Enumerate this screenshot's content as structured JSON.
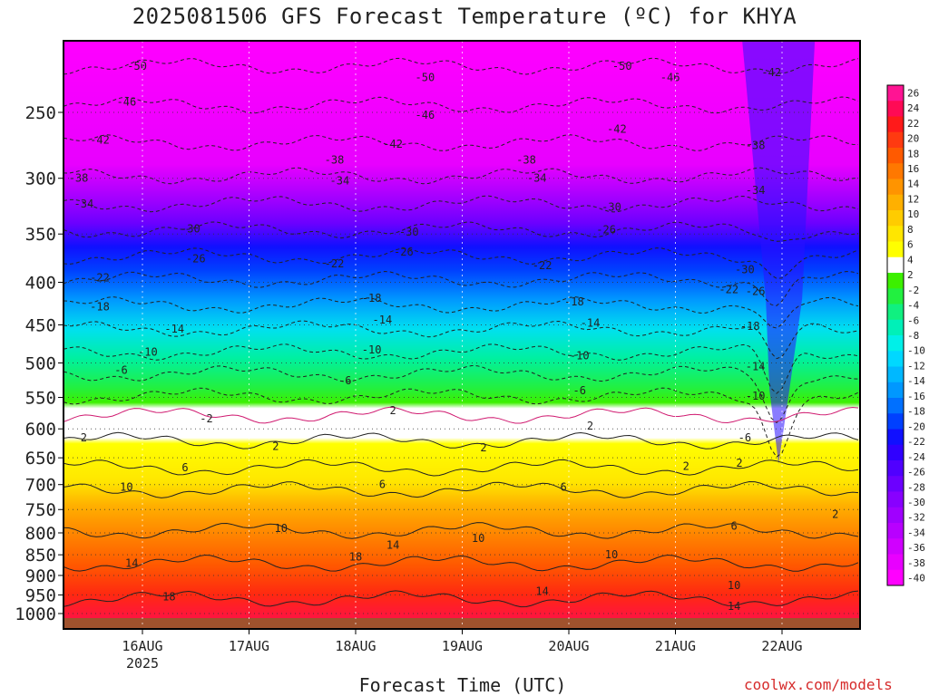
{
  "chart_data": {
    "type": "heatmap",
    "title": "2025081506 GFS Forecast Temperature (ºC) for KHYA",
    "xlabel": "Forecast Time (UTC)",
    "ylabel": "",
    "credit": "coolwx.com/models",
    "x_ticks": [
      {
        "day": 0,
        "label": "16AUG",
        "sub": "2025"
      },
      {
        "day": 1,
        "label": "17AUG",
        "sub": ""
      },
      {
        "day": 2,
        "label": "18AUG",
        "sub": ""
      },
      {
        "day": 3,
        "label": "19AUG",
        "sub": ""
      },
      {
        "day": 4,
        "label": "20AUG",
        "sub": ""
      },
      {
        "day": 5,
        "label": "21AUG",
        "sub": ""
      },
      {
        "day": 6,
        "label": "22AUG",
        "sub": ""
      }
    ],
    "xlim_days": [
      -0.75,
      6.75
    ],
    "y_ticks": [
      250,
      300,
      350,
      400,
      450,
      500,
      550,
      600,
      650,
      700,
      750,
      800,
      850,
      900,
      950,
      1000
    ],
    "ylim_hpa": [
      200,
      1025
    ],
    "y_scale": "log",
    "colorbar": {
      "labels": [
        26,
        24,
        22,
        20,
        18,
        16,
        14,
        12,
        10,
        8,
        6,
        4,
        2,
        -2,
        -4,
        -6,
        -8,
        -10,
        -12,
        -14,
        -16,
        -18,
        -20,
        -22,
        -24,
        -26,
        -28,
        -30,
        -32,
        -34,
        -36,
        -38,
        -40
      ],
      "colors": [
        "#ff1493",
        "#ff0a55",
        "#ff1a1a",
        "#ff3a10",
        "#ff5a00",
        "#ff7800",
        "#ff9400",
        "#ffb000",
        "#ffcc00",
        "#ffe600",
        "#ffff00",
        "#ffffff",
        "#3cf000",
        "#22f040",
        "#10f080",
        "#00f0b8",
        "#00f0e8",
        "#00d8ff",
        "#00b8ff",
        "#0098ff",
        "#0070ff",
        "#0040ff",
        "#1010ff",
        "#3000ff",
        "#5000ff",
        "#6c00ff",
        "#8800ff",
        "#a000ff",
        "#b800ff",
        "#d000ff",
        "#e800ff",
        "#ff00ff"
      ]
    },
    "contour_labels": [
      {
        "day": -0.05,
        "hpa": 220,
        "value": "-50"
      },
      {
        "day": 2.65,
        "hpa": 227,
        "value": "-50"
      },
      {
        "day": 4.5,
        "hpa": 220,
        "value": "-50"
      },
      {
        "day": -0.15,
        "hpa": 243,
        "value": "-46"
      },
      {
        "day": 2.65,
        "hpa": 252,
        "value": "-46"
      },
      {
        "day": 4.95,
        "hpa": 227,
        "value": "-46"
      },
      {
        "day": 5.9,
        "hpa": 224,
        "value": "-42"
      },
      {
        "day": -0.4,
        "hpa": 270,
        "value": "-42"
      },
      {
        "day": 2.35,
        "hpa": 273,
        "value": "-42"
      },
      {
        "day": 4.45,
        "hpa": 262,
        "value": "-42"
      },
      {
        "day": 5.75,
        "hpa": 274,
        "value": "-38"
      },
      {
        "day": 1.8,
        "hpa": 285,
        "value": "-38"
      },
      {
        "day": 3.6,
        "hpa": 285,
        "value": "-38"
      },
      {
        "day": -0.6,
        "hpa": 300,
        "value": "-38"
      },
      {
        "day": -0.55,
        "hpa": 322,
        "value": "-34"
      },
      {
        "day": 1.85,
        "hpa": 302,
        "value": "-34"
      },
      {
        "day": 3.7,
        "hpa": 300,
        "value": "-34"
      },
      {
        "day": 5.75,
        "hpa": 310,
        "value": "-34"
      },
      {
        "day": 0.45,
        "hpa": 345,
        "value": "-30"
      },
      {
        "day": 2.5,
        "hpa": 348,
        "value": "-30"
      },
      {
        "day": 4.4,
        "hpa": 325,
        "value": "-30"
      },
      {
        "day": 5.65,
        "hpa": 386,
        "value": "-30"
      },
      {
        "day": 0.5,
        "hpa": 375,
        "value": "-26"
      },
      {
        "day": 2.45,
        "hpa": 368,
        "value": "-26"
      },
      {
        "day": 4.35,
        "hpa": 346,
        "value": "-26"
      },
      {
        "day": 5.75,
        "hpa": 410,
        "value": "-26"
      },
      {
        "day": -0.4,
        "hpa": 395,
        "value": "-22"
      },
      {
        "day": 1.8,
        "hpa": 380,
        "value": "-22"
      },
      {
        "day": 3.75,
        "hpa": 382,
        "value": "-22"
      },
      {
        "day": 5.5,
        "hpa": 408,
        "value": "-22"
      },
      {
        "day": -0.4,
        "hpa": 428,
        "value": "-18"
      },
      {
        "day": 2.15,
        "hpa": 418,
        "value": "-18"
      },
      {
        "day": 4.05,
        "hpa": 422,
        "value": "-18"
      },
      {
        "day": 5.7,
        "hpa": 452,
        "value": "-18"
      },
      {
        "day": 0.3,
        "hpa": 455,
        "value": "-14"
      },
      {
        "day": 2.25,
        "hpa": 444,
        "value": "-14"
      },
      {
        "day": 4.2,
        "hpa": 448,
        "value": "-14"
      },
      {
        "day": 5.75,
        "hpa": 505,
        "value": "-14"
      },
      {
        "day": 0.05,
        "hpa": 485,
        "value": "-10"
      },
      {
        "day": 2.15,
        "hpa": 482,
        "value": "-10"
      },
      {
        "day": 4.1,
        "hpa": 490,
        "value": "-10"
      },
      {
        "day": 5.75,
        "hpa": 548,
        "value": "-10"
      },
      {
        "day": -0.2,
        "hpa": 510,
        "value": "-6"
      },
      {
        "day": 1.9,
        "hpa": 525,
        "value": "-6"
      },
      {
        "day": 4.1,
        "hpa": 540,
        "value": "-6"
      },
      {
        "day": 5.65,
        "hpa": 615,
        "value": "-6"
      },
      {
        "day": 0.6,
        "hpa": 583,
        "value": "-2"
      },
      {
        "day": 2.35,
        "hpa": 570,
        "value": "2"
      },
      {
        "day": 4.2,
        "hpa": 595,
        "value": "2"
      },
      {
        "day": 5.6,
        "hpa": 660,
        "value": "2"
      },
      {
        "day": -0.55,
        "hpa": 615,
        "value": "2"
      },
      {
        "day": 1.25,
        "hpa": 630,
        "value": "2"
      },
      {
        "day": 3.2,
        "hpa": 632,
        "value": "2"
      },
      {
        "day": 5.1,
        "hpa": 665,
        "value": "2"
      },
      {
        "day": 6.5,
        "hpa": 760,
        "value": "2"
      },
      {
        "day": 0.4,
        "hpa": 668,
        "value": "6"
      },
      {
        "day": 2.25,
        "hpa": 700,
        "value": "6"
      },
      {
        "day": 3.95,
        "hpa": 705,
        "value": "6"
      },
      {
        "day": 5.55,
        "hpa": 785,
        "value": "6"
      },
      {
        "day": -0.15,
        "hpa": 705,
        "value": "10"
      },
      {
        "day": 1.3,
        "hpa": 790,
        "value": "10"
      },
      {
        "day": 3.15,
        "hpa": 812,
        "value": "10"
      },
      {
        "day": 4.4,
        "hpa": 850,
        "value": "10"
      },
      {
        "day": 5.55,
        "hpa": 925,
        "value": "10"
      },
      {
        "day": -0.1,
        "hpa": 870,
        "value": "14"
      },
      {
        "day": 2.35,
        "hpa": 828,
        "value": "14"
      },
      {
        "day": 3.75,
        "hpa": 940,
        "value": "14"
      },
      {
        "day": 5.55,
        "hpa": 980,
        "value": "14"
      },
      {
        "day": 0.25,
        "hpa": 955,
        "value": "18"
      },
      {
        "day": 2.0,
        "hpa": 855,
        "value": "18"
      }
    ]
  }
}
